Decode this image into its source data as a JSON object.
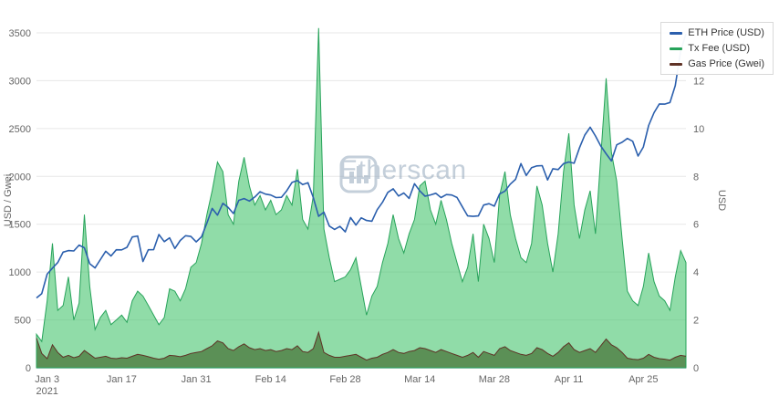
{
  "watermark": {
    "text": "Etherscan"
  },
  "chart_data": {
    "type": "area",
    "title": "",
    "legend_position": "top-right",
    "grid": "horizontal",
    "x_ticks": [
      {
        "index": 2,
        "label": "Jan 3",
        "sub_label": "2021"
      },
      {
        "index": 16,
        "label": "Jan 17"
      },
      {
        "index": 30,
        "label": "Jan 31"
      },
      {
        "index": 44,
        "label": "Feb 14"
      },
      {
        "index": 58,
        "label": "Feb 28"
      },
      {
        "index": 72,
        "label": "Mar 14"
      },
      {
        "index": 86,
        "label": "Mar 28"
      },
      {
        "index": 100,
        "label": "Apr 11"
      },
      {
        "index": 114,
        "label": "Apr 25"
      }
    ],
    "left_axis": {
      "title": "USD / Gwei",
      "ticks": [
        0,
        500,
        1000,
        1500,
        2000,
        2500,
        3000,
        3500
      ],
      "max": 3500
    },
    "right_axis": {
      "title": "USD",
      "ticks": [
        0,
        2,
        4,
        6,
        8,
        10,
        12
      ],
      "max": 14
    },
    "series": [
      {
        "name": "ETH Price (USD)",
        "type": "line",
        "axis": "left",
        "color": "#2b5fad",
        "values": [
          730,
          775,
          978,
          1041,
          1100,
          1208,
          1225,
          1221,
          1282,
          1254,
          1087,
          1043,
          1130,
          1218,
          1168,
          1233,
          1232,
          1259,
          1367,
          1377,
          1110,
          1233,
          1234,
          1392,
          1318,
          1358,
          1246,
          1330,
          1380,
          1372,
          1315,
          1369,
          1512,
          1665,
          1595,
          1719,
          1676,
          1612,
          1750,
          1768,
          1742,
          1784,
          1840,
          1815,
          1805,
          1779,
          1781,
          1849,
          1937,
          1956,
          1914,
          1934,
          1778,
          1583,
          1626,
          1481,
          1446,
          1477,
          1420,
          1570,
          1492,
          1567,
          1539,
          1532,
          1652,
          1729,
          1833,
          1870,
          1795,
          1826,
          1770,
          1924,
          1848,
          1793,
          1806,
          1823,
          1779,
          1810,
          1805,
          1780,
          1681,
          1587,
          1582,
          1587,
          1700,
          1715,
          1689,
          1817,
          1846,
          1919,
          1969,
          2133,
          2009,
          2091,
          2110,
          2112,
          1963,
          2080,
          2071,
          2133,
          2151,
          2137,
          2299,
          2432,
          2514,
          2422,
          2317,
          2236,
          2161,
          2330,
          2357,
          2397,
          2367,
          2213,
          2307,
          2532,
          2666,
          2757,
          2755,
          2772,
          2950,
          3310,
          3490
        ]
      },
      {
        "name": "Tx Fee (USD)",
        "type": "area",
        "axis": "right",
        "color": "#27a35a",
        "fill": "rgba(70,196,110,0.6)",
        "values": [
          1.4,
          1.1,
          2.8,
          5.2,
          2.4,
          2.6,
          3.8,
          2.0,
          2.7,
          6.4,
          3.4,
          1.6,
          2.1,
          2.4,
          1.8,
          2.0,
          2.2,
          1.9,
          2.8,
          3.2,
          3.0,
          2.6,
          2.2,
          1.8,
          2.1,
          3.3,
          3.2,
          2.8,
          3.3,
          4.2,
          4.4,
          5.2,
          6.4,
          7.4,
          8.6,
          8.2,
          6.4,
          6.0,
          7.8,
          8.8,
          7.6,
          6.8,
          7.2,
          6.6,
          7.0,
          6.4,
          6.6,
          7.2,
          6.8,
          8.3,
          6.2,
          5.8,
          7.2,
          14.2,
          5.8,
          4.6,
          3.6,
          3.7,
          3.8,
          4.1,
          4.6,
          3.4,
          2.2,
          3.0,
          3.4,
          4.4,
          5.2,
          6.4,
          5.4,
          4.8,
          5.6,
          6.2,
          7.6,
          7.8,
          6.6,
          6.0,
          7.0,
          6.2,
          5.2,
          4.4,
          3.6,
          4.2,
          5.6,
          3.6,
          6.0,
          5.4,
          4.4,
          7.2,
          8.2,
          6.4,
          5.4,
          4.6,
          4.4,
          5.2,
          7.6,
          6.8,
          5.2,
          4.0,
          5.6,
          8.2,
          9.8,
          6.8,
          5.4,
          6.6,
          7.4,
          5.6,
          8.8,
          12.1,
          9.0,
          7.8,
          5.4,
          3.2,
          2.8,
          2.6,
          3.4,
          4.8,
          3.6,
          3.0,
          2.8,
          2.4,
          3.8,
          4.9,
          4.4
        ]
      },
      {
        "name": "Gas Price (Gwei)",
        "type": "area",
        "axis": "left",
        "color": "#5f3226",
        "fill": "#7a4333",
        "values": [
          310,
          150,
          95,
          240,
          160,
          110,
          130,
          105,
          120,
          180,
          140,
          100,
          110,
          120,
          100,
          95,
          105,
          100,
          120,
          140,
          130,
          115,
          100,
          90,
          100,
          130,
          125,
          115,
          130,
          150,
          160,
          170,
          200,
          230,
          280,
          260,
          200,
          180,
          220,
          250,
          210,
          190,
          200,
          180,
          190,
          170,
          180,
          200,
          190,
          230,
          170,
          160,
          200,
          370,
          160,
          130,
          110,
          110,
          120,
          130,
          140,
          110,
          80,
          100,
          110,
          140,
          160,
          190,
          160,
          150,
          170,
          180,
          210,
          200,
          180,
          160,
          190,
          170,
          150,
          130,
          110,
          130,
          160,
          110,
          170,
          150,
          130,
          200,
          220,
          180,
          160,
          140,
          130,
          150,
          210,
          190,
          150,
          120,
          160,
          220,
          260,
          190,
          160,
          180,
          200,
          160,
          230,
          300,
          240,
          210,
          160,
          100,
          90,
          85,
          100,
          140,
          110,
          95,
          90,
          80,
          110,
          130,
          120
        ]
      }
    ]
  }
}
